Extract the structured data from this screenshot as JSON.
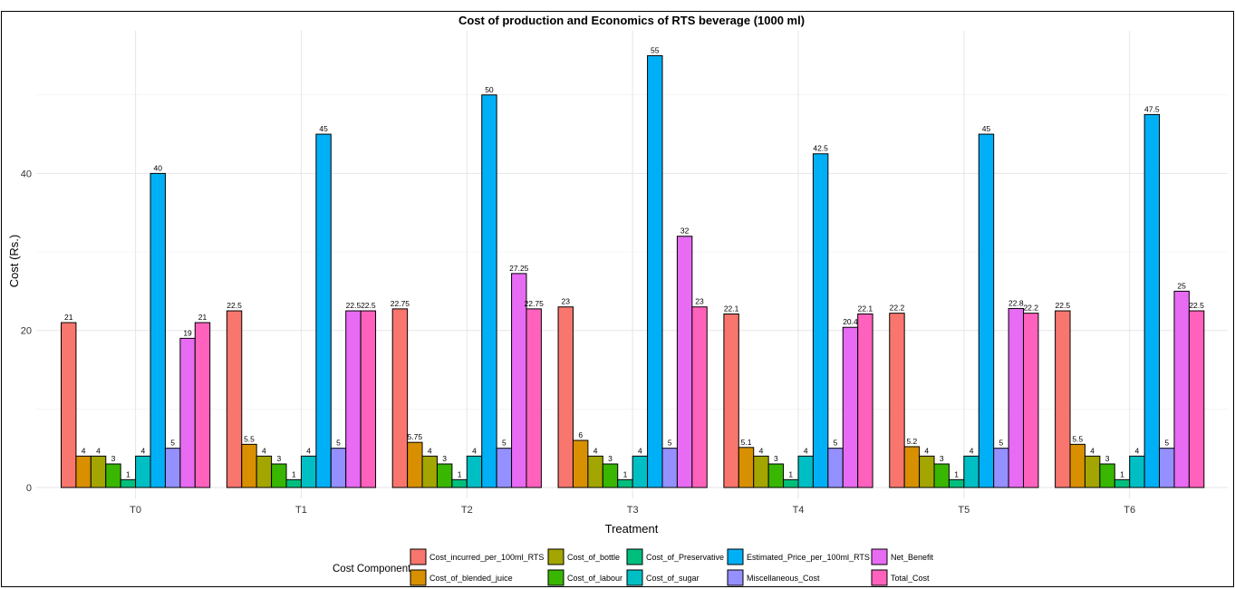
{
  "chart_data": {
    "type": "bar",
    "title": "Cost of production and Economics of RTS beverage (1000 ml)",
    "xlabel": "Treatment",
    "ylabel": "Cost (Rs.)",
    "ylim": [
      0,
      57
    ],
    "yticks": [
      0,
      20,
      40
    ],
    "grid": true,
    "legend_title": "Cost Component",
    "legend_position": "bottom",
    "categories": [
      "T0",
      "T1",
      "T2",
      "T3",
      "T4",
      "T5",
      "T6"
    ],
    "series": [
      {
        "name": "Cost_incurred_per_100ml_RTS",
        "color": "#F8766D",
        "values": [
          21,
          22.5,
          22.75,
          23,
          22.1,
          22.2,
          22.5
        ]
      },
      {
        "name": "Cost_of_blended_juice",
        "color": "#D89000",
        "values": [
          4,
          5.5,
          5.75,
          6,
          5.1,
          5.2,
          5.5
        ]
      },
      {
        "name": "Cost_of_bottle",
        "color": "#A3A500",
        "values": [
          4,
          4,
          4,
          4,
          4,
          4,
          4
        ]
      },
      {
        "name": "Cost_of_labour",
        "color": "#39B600",
        "values": [
          3,
          3,
          3,
          3,
          3,
          3,
          3
        ]
      },
      {
        "name": "Cost_of_Preservative",
        "color": "#00BF7D",
        "values": [
          1,
          1,
          1,
          1,
          1,
          1,
          1
        ]
      },
      {
        "name": "Cost_of_sugar",
        "color": "#00BFC4",
        "values": [
          4,
          4,
          4,
          4,
          4,
          4,
          4
        ]
      },
      {
        "name": "Estimated_Price_per_100ml_RTS",
        "color": "#00B0F6",
        "values": [
          40,
          45,
          50,
          55,
          42.5,
          45,
          47.5
        ]
      },
      {
        "name": "Miscellaneous_Cost",
        "color": "#9590FF",
        "values": [
          5,
          5,
          5,
          5,
          5,
          5,
          5
        ]
      },
      {
        "name": "Net_Benefit",
        "color": "#E76BF3",
        "values": [
          19,
          22.5,
          27.25,
          32,
          20.4,
          22.8,
          25
        ]
      },
      {
        "name": "Total_Cost",
        "color": "#FF62BC",
        "values": [
          21,
          22.5,
          22.75,
          23,
          22.1,
          22.2,
          22.5
        ]
      }
    ],
    "legend_order": [
      0,
      2,
      4,
      6,
      8,
      1,
      3,
      5,
      7,
      9
    ]
  }
}
